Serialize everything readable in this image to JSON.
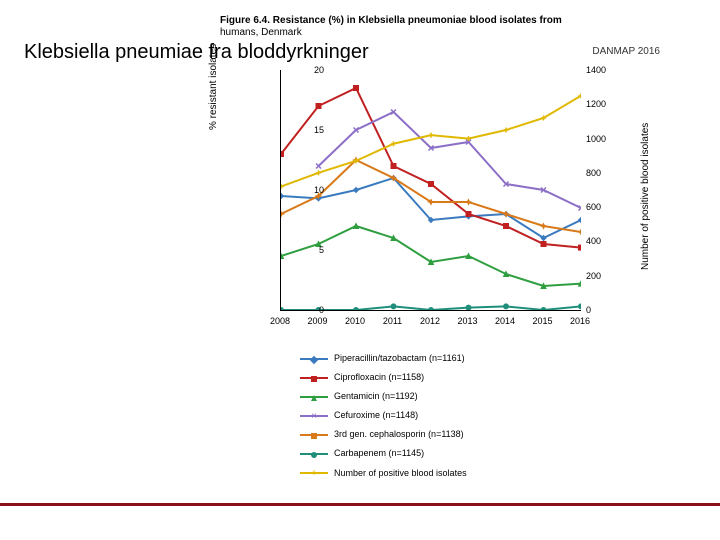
{
  "side_title": "Klebsiella pneumiae fra bloddyrkninger",
  "figure_title": "Figure 6.4. Resistance (%) in Klebsiella pneumoniae blood isolates from",
  "figure_title_line2": "humans, Denmark",
  "watermark": "DANMAP 2016",
  "y_left_label": "% resistant isolates",
  "y_right_label": "Number of positive blood isolates",
  "chart": {
    "type": "line",
    "x_categories": [
      "2008",
      "2009",
      "2010",
      "2011",
      "2012",
      "2013",
      "2014",
      "2015",
      "2016"
    ],
    "y_left": {
      "min": 0,
      "max": 20,
      "ticks": [
        0,
        5,
        10,
        15,
        20
      ]
    },
    "y_right": {
      "min": 0,
      "max": 1400,
      "ticks": [
        0,
        200,
        400,
        600,
        800,
        1000,
        1200,
        1400
      ]
    },
    "line_width": 2,
    "marker_size": 5,
    "plot_bg": "#ffffff",
    "grid_color": "#dddddd",
    "series": [
      {
        "id": "pip",
        "label": "Piperacillin/tazobactam (n=1161)",
        "color": "#3a7bbf",
        "marker": "diamond",
        "axis": "left",
        "values": [
          9.5,
          9.3,
          10.0,
          11.0,
          7.5,
          7.8,
          8.0,
          6.0,
          7.5
        ]
      },
      {
        "id": "cipro",
        "label": "Ciprofloxacin (n=1158)",
        "color": "#c02020",
        "marker": "square",
        "axis": "left",
        "values": [
          13.0,
          17.0,
          18.5,
          12.0,
          10.5,
          8.0,
          7.0,
          5.5,
          5.2
        ]
      },
      {
        "id": "genta",
        "label": "Gentamicin (n=1192)",
        "color": "#2e9e3f",
        "marker": "triangle",
        "axis": "left",
        "values": [
          4.5,
          5.5,
          7.0,
          6.0,
          4.0,
          4.5,
          3.0,
          2.0,
          2.2
        ]
      },
      {
        "id": "cefuro",
        "label": "Cefuroxime (n=1148)",
        "color": "#8c6fc7",
        "marker": "x",
        "axis": "left",
        "values": [
          null,
          12.0,
          15.0,
          16.5,
          13.5,
          14.0,
          10.5,
          10.0,
          8.5
        ]
      },
      {
        "id": "thirdgen",
        "label": "3rd gen. cephalosporin (n=1138)",
        "color": "#d87a1a",
        "marker": "star",
        "axis": "left",
        "values": [
          8.0,
          9.5,
          12.5,
          11.0,
          9.0,
          9.0,
          8.0,
          7.0,
          6.5
        ]
      },
      {
        "id": "carba",
        "label": "Carbapenem (n=1145)",
        "color": "#1f8f7b",
        "marker": "circle",
        "axis": "left",
        "values": [
          0,
          0,
          0,
          0.3,
          0,
          0.2,
          0.3,
          0,
          0.3
        ]
      },
      {
        "id": "count",
        "label": "Number of positive blood isolates",
        "color": "#e0b800",
        "marker": "plus",
        "axis": "right",
        "values": [
          720,
          800,
          870,
          970,
          1020,
          1000,
          1050,
          1120,
          1250
        ]
      }
    ]
  },
  "legend_border": "#888888",
  "footer_rule_color": "#8a0f1a"
}
